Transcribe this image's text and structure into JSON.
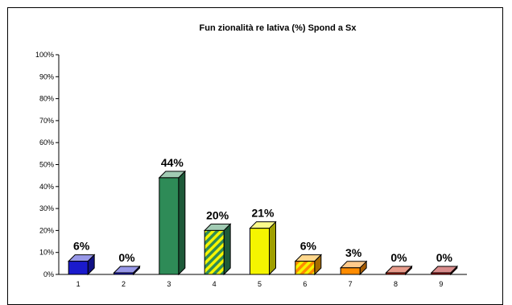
{
  "chart_data": {
    "type": "bar",
    "title": "Fun zionalità re lativa (%) Spond a Sx",
    "categories": [
      "1",
      "2",
      "3",
      "4",
      "5",
      "6",
      "7",
      "8",
      "9"
    ],
    "values": [
      6,
      0,
      44,
      20,
      21,
      6,
      3,
      0,
      0
    ],
    "data_labels": [
      "6%",
      "0%",
      "44%",
      "20%",
      "21%",
      "6%",
      "3%",
      "0%",
      "0%"
    ],
    "ylim": [
      0,
      100
    ],
    "yticks": [
      "0%",
      "10%",
      "20%",
      "30%",
      "40%",
      "50%",
      "60%",
      "70%",
      "80%",
      "90%",
      "100%"
    ],
    "grid": false,
    "legend": "none",
    "bar_colors": [
      "#1a1acc",
      "#1a1acc",
      "#2e8b57",
      "#2e8b57",
      "#f5f500",
      "#ffa500",
      "#ff8c00",
      "#cc2200",
      "#aa0000"
    ],
    "bar_patterns": [
      "none",
      "none",
      "none",
      "stripes-green-yellow",
      "none",
      "stripes-orange-yellow",
      "none",
      "none",
      "none"
    ]
  }
}
